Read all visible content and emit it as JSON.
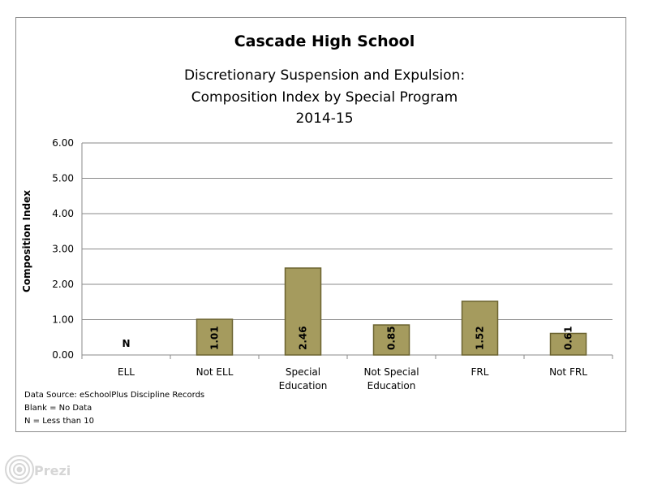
{
  "chart_data": {
    "type": "bar",
    "title": "Cascade High School",
    "subtitle": [
      "Discretionary Suspension and Expulsion:",
      "Composition Index by Special Program",
      "2014-15"
    ],
    "ylabel": "Composition Index",
    "xlabel": "",
    "ylim": [
      0,
      6
    ],
    "yticks": [
      "0.00",
      "1.00",
      "2.00",
      "3.00",
      "4.00",
      "5.00",
      "6.00"
    ],
    "categories": [
      "ELL",
      "Not ELL",
      "Special Education",
      "Not Special Education",
      "FRL",
      "Not FRL"
    ],
    "category_lines": [
      [
        "ELL"
      ],
      [
        "Not ELL"
      ],
      [
        "Special",
        "Education"
      ],
      [
        "Not Special",
        "Education"
      ],
      [
        "FRL"
      ],
      [
        "Not FRL"
      ]
    ],
    "values": [
      null,
      1.01,
      2.46,
      0.85,
      1.52,
      0.61
    ],
    "data_labels": [
      "N",
      "1.01",
      "2.46",
      "0.85",
      "1.52",
      "0.61"
    ],
    "grid": true,
    "legend": "none",
    "bar_color": "#a59b5e",
    "bar_edge_color": "#6b6330"
  },
  "notes": [
    "Data Source: eSchoolPlus Discipline Records",
    "Blank = No Data",
    "N = Less than 10"
  ],
  "watermark": {
    "text": "Prezi",
    "icon": "prezi-logo-icon",
    "color": "#d6d6d6"
  }
}
